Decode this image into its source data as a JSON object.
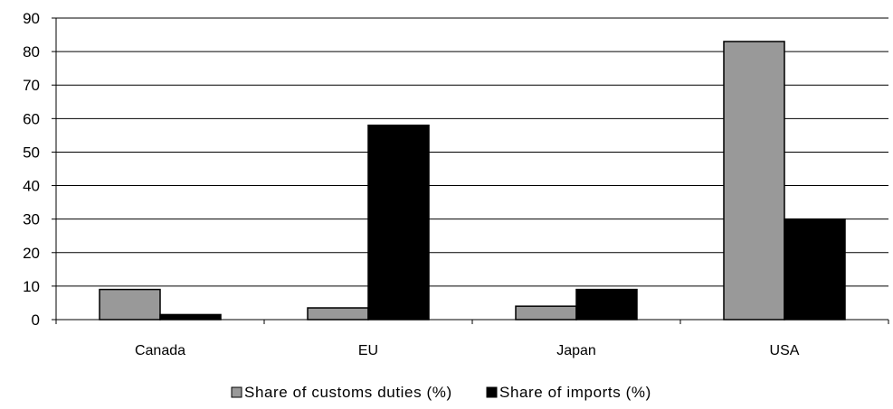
{
  "chart_data": {
    "type": "bar",
    "categories": [
      "Canada",
      "EU",
      "Japan",
      "USA"
    ],
    "series": [
      {
        "name": "Share of customs duties (%)",
        "values": [
          9,
          3.5,
          4,
          83
        ],
        "color": "#999999"
      },
      {
        "name": "Share of imports (%)",
        "values": [
          1.5,
          58,
          9,
          30
        ],
        "color": "#000000"
      }
    ],
    "ylim": [
      0,
      90
    ],
    "yticks": [
      0,
      10,
      20,
      30,
      40,
      50,
      60,
      70,
      80,
      90
    ],
    "grid": true,
    "legend_position": "bottom"
  }
}
